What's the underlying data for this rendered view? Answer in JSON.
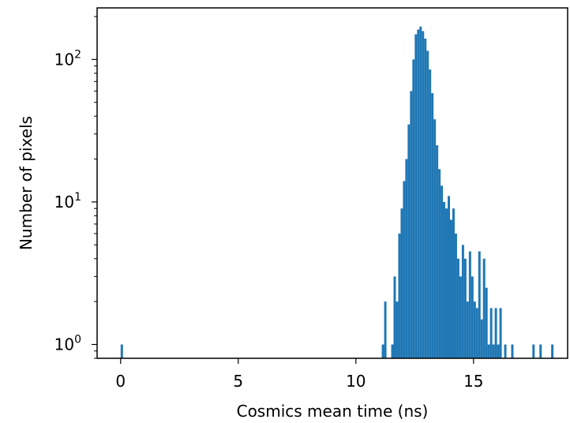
{
  "chart_data": {
    "type": "bar",
    "xlabel": "Cosmics mean time (ns)",
    "ylabel": "Number of pixels",
    "yscale": "log",
    "xlim": [
      -1,
      19
    ],
    "ylim": [
      0.8,
      230
    ],
    "x_ticks": [
      {
        "value": 0,
        "label": "0"
      },
      {
        "value": 5,
        "label": "5"
      },
      {
        "value": 10,
        "label": "10"
      },
      {
        "value": 15,
        "label": "15"
      }
    ],
    "y_ticks": [
      {
        "value": 1,
        "base": "10",
        "exp": "0"
      },
      {
        "value": 10,
        "base": "10",
        "exp": "1"
      },
      {
        "value": 100,
        "base": "10",
        "exp": "2"
      }
    ],
    "bin_width": 0.1,
    "bins": [
      [
        0.0,
        1
      ],
      [
        11.1,
        1
      ],
      [
        11.2,
        2
      ],
      [
        11.5,
        1
      ],
      [
        11.6,
        3
      ],
      [
        11.7,
        2
      ],
      [
        11.8,
        6
      ],
      [
        11.9,
        9
      ],
      [
        12.0,
        14
      ],
      [
        12.1,
        20
      ],
      [
        12.2,
        35
      ],
      [
        12.3,
        60
      ],
      [
        12.4,
        100
      ],
      [
        12.5,
        150
      ],
      [
        12.6,
        162
      ],
      [
        12.7,
        170
      ],
      [
        12.8,
        158
      ],
      [
        12.9,
        140
      ],
      [
        13.0,
        115
      ],
      [
        13.1,
        85
      ],
      [
        13.2,
        58
      ],
      [
        13.3,
        38
      ],
      [
        13.4,
        25
      ],
      [
        13.5,
        17
      ],
      [
        13.6,
        13
      ],
      [
        13.7,
        10
      ],
      [
        13.8,
        9
      ],
      [
        13.9,
        11
      ],
      [
        14.0,
        7.5
      ],
      [
        14.1,
        9
      ],
      [
        14.2,
        6
      ],
      [
        14.3,
        4
      ],
      [
        14.4,
        3
      ],
      [
        14.5,
        5
      ],
      [
        14.6,
        4
      ],
      [
        14.7,
        2
      ],
      [
        14.8,
        4.5
      ],
      [
        14.9,
        3
      ],
      [
        15.0,
        2
      ],
      [
        15.1,
        1.8
      ],
      [
        15.2,
        4.5
      ],
      [
        15.3,
        1.5
      ],
      [
        15.4,
        4
      ],
      [
        15.5,
        2.5
      ],
      [
        15.6,
        1
      ],
      [
        15.7,
        1.8
      ],
      [
        15.8,
        1
      ],
      [
        15.9,
        1.8
      ],
      [
        16.0,
        1
      ],
      [
        16.1,
        1.8
      ],
      [
        16.3,
        1
      ],
      [
        16.6,
        1
      ],
      [
        17.5,
        1
      ],
      [
        17.8,
        1
      ],
      [
        18.3,
        1
      ]
    ],
    "bar_color": "#1f77b4",
    "grid": false
  }
}
